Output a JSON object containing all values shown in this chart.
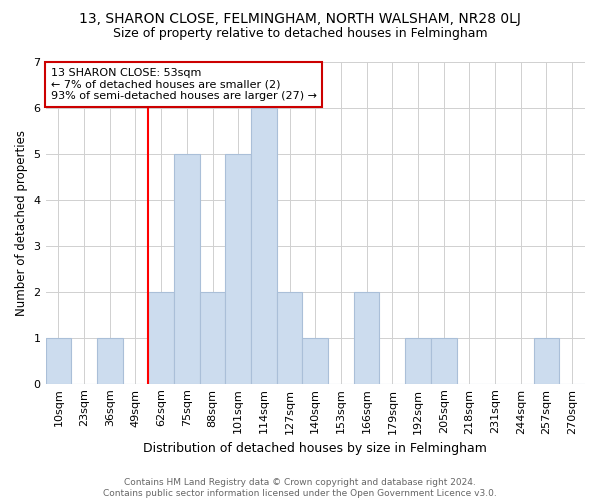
{
  "title_line1": "13, SHARON CLOSE, FELMINGHAM, NORTH WALSHAM, NR28 0LJ",
  "title_line2": "Size of property relative to detached houses in Felmingham",
  "xlabel": "Distribution of detached houses by size in Felmingham",
  "ylabel": "Number of detached properties",
  "footnote": "Contains HM Land Registry data © Crown copyright and database right 2024.\nContains public sector information licensed under the Open Government Licence v3.0.",
  "bin_labels": [
    "10sqm",
    "23sqm",
    "36sqm",
    "49sqm",
    "62sqm",
    "75sqm",
    "88sqm",
    "101sqm",
    "114sqm",
    "127sqm",
    "140sqm",
    "153sqm",
    "166sqm",
    "179sqm",
    "192sqm",
    "205sqm",
    "218sqm",
    "231sqm",
    "244sqm",
    "257sqm",
    "270sqm"
  ],
  "bar_values": [
    1,
    0,
    1,
    0,
    2,
    5,
    2,
    5,
    6,
    2,
    1,
    0,
    2,
    0,
    1,
    1,
    0,
    0,
    0,
    1,
    0
  ],
  "bar_color": "#ccdcee",
  "bar_edge_color": "#aabfd8",
  "ylim": [
    0,
    7
  ],
  "yticks": [
    0,
    1,
    2,
    3,
    4,
    5,
    6,
    7
  ],
  "red_line_x": 3.5,
  "annotation_text": "13 SHARON CLOSE: 53sqm\n← 7% of detached houses are smaller (2)\n93% of semi-detached houses are larger (27) →",
  "annotation_box_color": "#ffffff",
  "annotation_box_edge": "#cc0000",
  "background_color": "#ffffff",
  "grid_color": "#d0d0d0",
  "title1_fontsize": 10,
  "title2_fontsize": 9,
  "xlabel_fontsize": 9,
  "ylabel_fontsize": 8.5,
  "tick_fontsize": 8,
  "annotation_fontsize": 8
}
